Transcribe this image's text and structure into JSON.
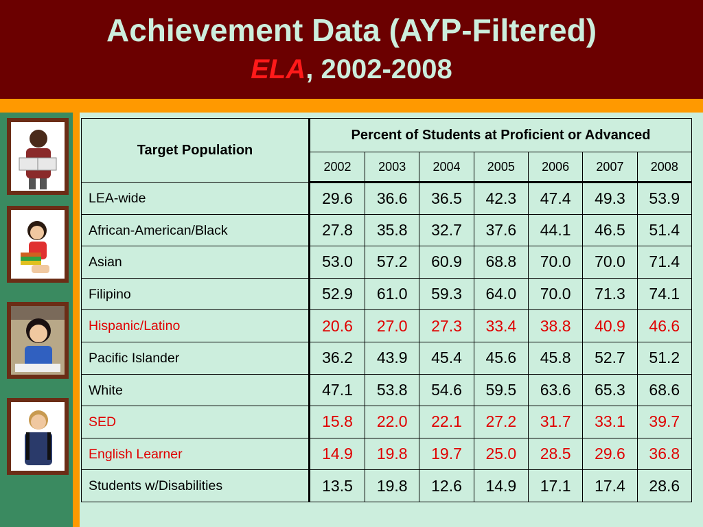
{
  "header": {
    "title": "Achievement Data (AYP-Filtered)",
    "subtitle_accent": "ELA",
    "subtitle_rest": ", 2002-2008"
  },
  "sidebar": {
    "photos": [
      "child-reading-photo",
      "girl-with-books-photo",
      "girl-smiling-photo",
      "boy-with-backpack-photo"
    ]
  },
  "table": {
    "row_header": "Target Population",
    "group_header": "Percent of Students at Proficient or Advanced",
    "years": [
      "2002",
      "2003",
      "2004",
      "2005",
      "2006",
      "2007",
      "2008"
    ],
    "rows": [
      {
        "label": "LEA-wide",
        "highlight": false,
        "values": [
          "29.6",
          "36.6",
          "36.5",
          "42.3",
          "47.4",
          "49.3",
          "53.9"
        ]
      },
      {
        "label": "African-American/Black",
        "highlight": false,
        "values": [
          "27.8",
          "35.8",
          "32.7",
          "37.6",
          "44.1",
          "46.5",
          "51.4"
        ]
      },
      {
        "label": "Asian",
        "highlight": false,
        "values": [
          "53.0",
          "57.2",
          "60.9",
          "68.8",
          "70.0",
          "70.0",
          "71.4"
        ]
      },
      {
        "label": "Filipino",
        "highlight": false,
        "values": [
          "52.9",
          "61.0",
          "59.3",
          "64.0",
          "70.0",
          "71.3",
          "74.1"
        ]
      },
      {
        "label": "Hispanic/Latino",
        "highlight": true,
        "values": [
          "20.6",
          "27.0",
          "27.3",
          "33.4",
          "38.8",
          "40.9",
          "46.6"
        ]
      },
      {
        "label": "Pacific Islander",
        "highlight": false,
        "values": [
          "36.2",
          "43.9",
          "45.4",
          "45.6",
          "45.8",
          "52.7",
          "51.2"
        ]
      },
      {
        "label": "White",
        "highlight": false,
        "values": [
          "47.1",
          "53.8",
          "54.6",
          "59.5",
          "63.6",
          "65.3",
          "68.6"
        ]
      },
      {
        "label": "SED",
        "highlight": true,
        "values": [
          "15.8",
          "22.0",
          "22.1",
          "27.2",
          "31.7",
          "33.1",
          "39.7"
        ]
      },
      {
        "label": "English Learner",
        "highlight": true,
        "values": [
          "14.9",
          "19.8",
          "19.7",
          "25.0",
          "28.5",
          "29.6",
          "36.8"
        ]
      },
      {
        "label": "Students w/Disabilities",
        "highlight": false,
        "values": [
          "13.5",
          "19.8",
          "12.6",
          "14.9",
          "17.1",
          "17.4",
          "28.6"
        ]
      }
    ]
  },
  "colors": {
    "header_bg": "#6b0000",
    "title_text": "#cceedd",
    "accent_red": "#ff1a1a",
    "orange": "#ff9900",
    "table_bg": "#cceedd",
    "highlight_text": "#e00000"
  }
}
